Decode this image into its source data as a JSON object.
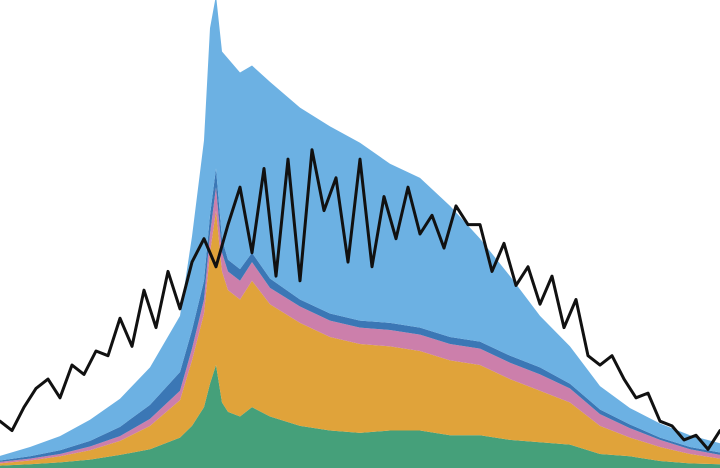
{
  "chart_data": {
    "type": "area",
    "stacked": true,
    "title": "",
    "xlabel": "",
    "ylabel": "",
    "xlim": [
      0,
      120
    ],
    "ylim": [
      0,
      100
    ],
    "grid": false,
    "legend": "none",
    "x": [
      0,
      5,
      10,
      15,
      20,
      25,
      30,
      32,
      34,
      35,
      36,
      37,
      38,
      40,
      42,
      45,
      50,
      55,
      60,
      65,
      70,
      75,
      80,
      85,
      90,
      95,
      100,
      105,
      110,
      115,
      120
    ],
    "series": [
      {
        "role": "bottom-layer",
        "color": "#45a07a",
        "values": [
          0.5,
          0.8,
          1.2,
          1.8,
          2.8,
          4,
          6.5,
          9,
          13,
          18,
          22,
          14,
          12,
          11,
          13,
          11,
          9,
          8,
          7.5,
          8,
          8,
          7,
          7,
          6,
          5.5,
          5,
          3,
          2.5,
          1.5,
          1,
          0.8
        ]
      },
      {
        "role": "second-layer",
        "color": "#e0a33a",
        "values": [
          0.5,
          0.8,
          1.3,
          2,
          3,
          5,
          8,
          14,
          20,
          28,
          33,
          28,
          26,
          25,
          27,
          24,
          22,
          20,
          19,
          18,
          17,
          16,
          15,
          13,
          11,
          9,
          6,
          4,
          3,
          2,
          1.2
        ]
      },
      {
        "role": "third-layer",
        "color": "#cc7fab",
        "values": [
          0.3,
          0.4,
          0.5,
          0.8,
          1,
          1.5,
          2,
          2.5,
          3,
          4,
          5,
          4,
          4,
          4,
          4,
          3.5,
          3.5,
          3.5,
          3.5,
          3.5,
          3.5,
          3.5,
          3.5,
          3.5,
          3.5,
          3,
          2.5,
          2,
          1.5,
          1,
          0.8
        ]
      },
      {
        "role": "fourth-layer",
        "color": "#3b77b5",
        "values": [
          0.3,
          0.5,
          0.8,
          1.2,
          2,
          3,
          4,
          4,
          4,
          4,
          4,
          3,
          2.5,
          2.5,
          2,
          2,
          1.5,
          1.5,
          1.5,
          1.5,
          1.5,
          1.5,
          1.5,
          1.5,
          1.5,
          1,
          1,
          0.8,
          0.5,
          0.5,
          0.5
        ]
      },
      {
        "role": "top-layer",
        "color": "#6cb1e3",
        "values": [
          1,
          2,
          3,
          4.5,
          6,
          8,
          12,
          20,
          30,
          40,
          37,
          40,
          43,
          42,
          40,
          42,
          41,
          40,
          38,
          34,
          32,
          28,
          22,
          17,
          11,
          8,
          5,
          3.5,
          3,
          2.5,
          2
        ]
      }
    ],
    "overlay_line": {
      "color": "#111111",
      "x": [
        0,
        2,
        4,
        6,
        8,
        10,
        12,
        14,
        16,
        18,
        20,
        22,
        24,
        26,
        28,
        30,
        32,
        34,
        36,
        38,
        40,
        42,
        44,
        46,
        48,
        50,
        52,
        54,
        56,
        58,
        60,
        62,
        64,
        66,
        68,
        70,
        72,
        74,
        76,
        78,
        80,
        82,
        84,
        86,
        88,
        90,
        92,
        94,
        96,
        98,
        100,
        102,
        104,
        106,
        108,
        110,
        112,
        114,
        116,
        118,
        120
      ],
      "values": [
        10,
        8,
        13,
        17,
        19,
        15,
        22,
        20,
        25,
        24,
        32,
        26,
        38,
        30,
        42,
        34,
        44,
        49,
        43,
        52,
        60,
        46,
        64,
        41,
        66,
        40,
        68,
        55,
        62,
        44,
        66,
        43,
        58,
        49,
        60,
        50,
        54,
        47,
        56,
        52,
        52,
        42,
        48,
        39,
        43,
        35,
        41,
        30,
        36,
        24,
        22,
        24,
        19,
        15,
        16,
        10,
        9,
        6,
        7,
        4,
        8
      ]
    }
  }
}
